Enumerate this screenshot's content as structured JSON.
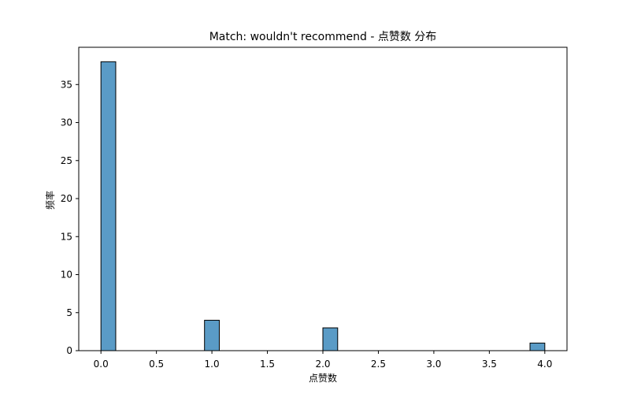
{
  "chart_data": {
    "type": "bar",
    "title": "Match: wouldn't recommend - 点赞数 分布",
    "xlabel": "点赞数",
    "ylabel": "频率",
    "xlim": [
      -0.2,
      4.2
    ],
    "ylim": [
      0,
      39.9
    ],
    "x_ticks": [
      "0.0",
      "0.5",
      "1.0",
      "1.5",
      "2.0",
      "2.5",
      "3.0",
      "3.5",
      "4.0"
    ],
    "y_ticks": [
      "0",
      "5",
      "10",
      "15",
      "20",
      "25",
      "30",
      "35"
    ],
    "bin_width": 0.1333,
    "bars": [
      {
        "x_start": 0.0,
        "x_end": 0.1333,
        "count": 38
      },
      {
        "x_start": 0.9333,
        "x_end": 1.0667,
        "count": 4
      },
      {
        "x_start": 2.0,
        "x_end": 2.1333,
        "count": 3
      },
      {
        "x_start": 3.8667,
        "x_end": 4.0,
        "count": 1
      }
    ],
    "bar_color": "#5a9bc6",
    "edge_color": "#000000",
    "grid": false,
    "legend": "none"
  }
}
